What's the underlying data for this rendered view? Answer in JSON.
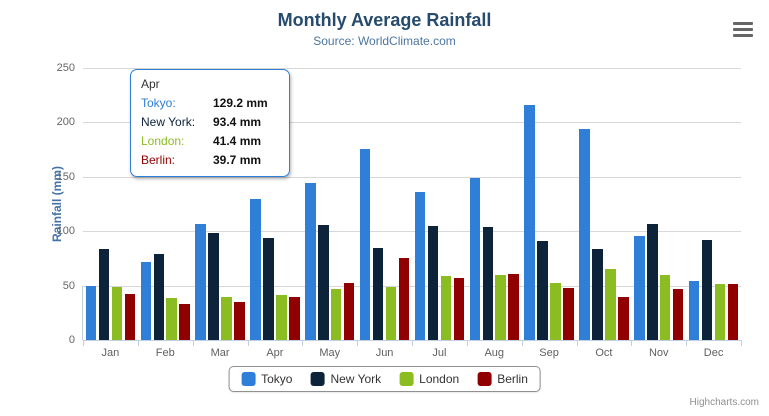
{
  "header": {
    "title": "Monthly Average Rainfall",
    "subtitle": "Source: WorldClimate.com"
  },
  "chart_data": {
    "type": "bar",
    "title": "Monthly Average Rainfall",
    "subtitle": "Source: WorldClimate.com",
    "categories": [
      "Jan",
      "Feb",
      "Mar",
      "Apr",
      "May",
      "Jun",
      "Jul",
      "Aug",
      "Sep",
      "Oct",
      "Nov",
      "Dec"
    ],
    "series": [
      {
        "name": "Tokyo",
        "color": "#2f7ed8",
        "values": [
          49.9,
          71.5,
          106.4,
          129.2,
          144.0,
          176.0,
          135.6,
          148.5,
          216.4,
          194.1,
          95.6,
          54.4
        ]
      },
      {
        "name": "New York",
        "color": "#0d233a",
        "values": [
          83.6,
          78.8,
          98.5,
          93.4,
          106.0,
          84.5,
          105.0,
          104.3,
          91.2,
          83.5,
          106.6,
          92.3
        ]
      },
      {
        "name": "London",
        "color": "#8bbc21",
        "values": [
          48.9,
          38.8,
          39.3,
          41.4,
          47.0,
          48.3,
          59.0,
          59.6,
          52.4,
          65.2,
          59.3,
          51.2
        ]
      },
      {
        "name": "Berlin",
        "color": "#910000",
        "values": [
          42.4,
          33.2,
          34.5,
          39.7,
          52.6,
          75.5,
          57.4,
          60.4,
          47.6,
          39.1,
          46.8,
          51.1
        ]
      }
    ],
    "xlabel": "",
    "ylabel": "Rainfall (mm)",
    "ylim": [
      0,
      250
    ],
    "y_ticks": [
      0,
      50,
      100,
      150,
      200,
      250
    ],
    "grid": true,
    "legend_position": "bottom"
  },
  "tooltip": {
    "header": "Apr",
    "rows": [
      {
        "label": "Tokyo:",
        "value": "129.2 mm",
        "color": "#2f7ed8"
      },
      {
        "label": "New York:",
        "value": "93.4 mm",
        "color": "#0d233a"
      },
      {
        "label": "London:",
        "value": "41.4 mm",
        "color": "#8bbc21"
      },
      {
        "label": "Berlin:",
        "value": "39.7 mm",
        "color": "#910000"
      }
    ]
  },
  "credits": {
    "label": "Highcharts.com"
  }
}
